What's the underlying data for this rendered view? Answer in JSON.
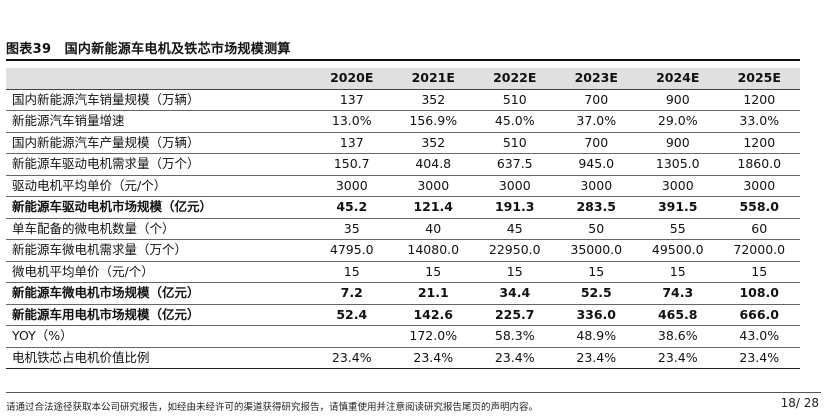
{
  "table_title": "图表39　国内新能源车电机及铁芯市场规模测算",
  "columns": [
    "2020E",
    "2021E",
    "2022E",
    "2023E",
    "2024E",
    "2025E"
  ],
  "rows": [
    {
      "label": "国内新能源汽车销量规模（万辆）",
      "bold": false,
      "values": [
        "137",
        "352",
        "510",
        "700",
        "900",
        "1200"
      ]
    },
    {
      "label": "新能源汽车销量增速",
      "bold": false,
      "values": [
        "13.0%",
        "156.9%",
        "45.0%",
        "37.0%",
        "29.0%",
        "33.0%"
      ]
    },
    {
      "label": "国内新能源汽车产量规模（万辆）",
      "bold": false,
      "values": [
        "137",
        "352",
        "510",
        "700",
        "900",
        "1200"
      ]
    },
    {
      "label": "新能源车驱动电机需求量（万个）",
      "bold": false,
      "values": [
        "150.7",
        "404.8",
        "637.5",
        "945.0",
        "1305.0",
        "1860.0"
      ]
    },
    {
      "label": "驱动电机平均单价（元/个）",
      "bold": false,
      "values": [
        "3000",
        "3000",
        "3000",
        "3000",
        "3000",
        "3000"
      ]
    },
    {
      "label": "新能源车驱动电机市场规模（亿元）",
      "bold": true,
      "values": [
        "45.2",
        "121.4",
        "191.3",
        "283.5",
        "391.5",
        "558.0"
      ]
    },
    {
      "label": "单车配备的微电机数量（个）",
      "bold": false,
      "values": [
        "35",
        "40",
        "45",
        "50",
        "55",
        "60"
      ]
    },
    {
      "label": "新能源车微电机需求量（万个）",
      "bold": false,
      "values": [
        "4795.0",
        "14080.0",
        "22950.0",
        "35000.0",
        "49500.0",
        "72000.0"
      ]
    },
    {
      "label": "微电机平均单价（元/个）",
      "bold": false,
      "values": [
        "15",
        "15",
        "15",
        "15",
        "15",
        "15"
      ]
    },
    {
      "label": "新能源车微电机市场规模（亿元）",
      "bold": true,
      "values": [
        "7.2",
        "21.1",
        "34.4",
        "52.5",
        "74.3",
        "108.0"
      ]
    },
    {
      "label": "新能源车用电机市场规模（亿元）",
      "bold": true,
      "values": [
        "52.4",
        "142.6",
        "225.7",
        "336.0",
        "465.8",
        "666.0"
      ]
    },
    {
      "label": "YOY（%）",
      "bold": false,
      "values": [
        "",
        "172.0%",
        "58.3%",
        "48.9%",
        "38.6%",
        "43.0%"
      ]
    },
    {
      "label": "电机铁芯占电机价值比例",
      "bold": false,
      "values": [
        "23.4%",
        "23.4%",
        "23.4%",
        "23.4%",
        "23.4%",
        "23.4%"
      ]
    }
  ],
  "footer_text": "请通过合法途径获取本公司研究报告，如经由未经许可的渠道获得研究报告，请慎重使用并注意阅读研究报告尾页的声明内容。",
  "page_number": "18/ 28"
}
